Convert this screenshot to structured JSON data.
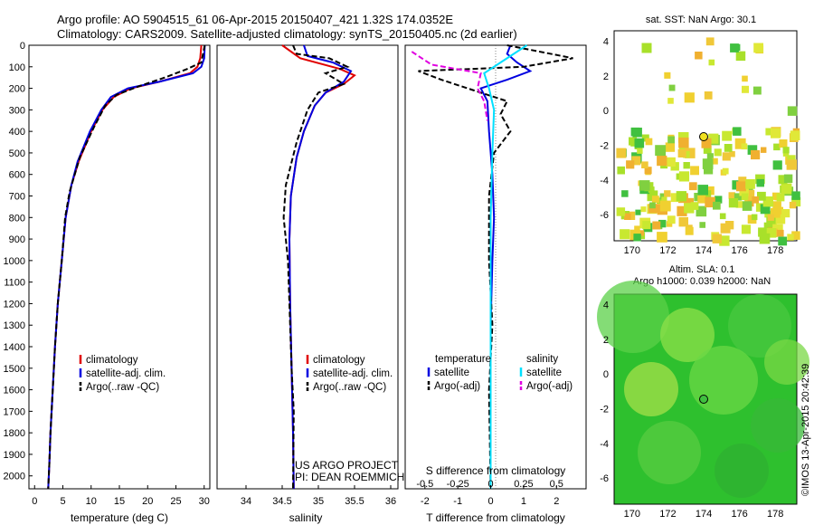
{
  "header": {
    "line1": "Argo profile: AO 5904515_61 06-Apr-2015 20150407_421 1.32S 174.0352E",
    "line2": "Climatology: CARS2009. Satellite-adjusted climatology: synTS_20150405.nc (2d earlier)"
  },
  "colors": {
    "climatology": "#e00000",
    "satellite": "#0000e0",
    "argo": "#000000",
    "salinity_satellite": "#00e0ff",
    "salinity_argo": "#e000e0"
  },
  "chart_data": [
    {
      "type": "line",
      "id": "temperature",
      "xlabel": "temperature (deg C)",
      "ylabel": "",
      "xlim": [
        -1,
        31
      ],
      "ylim": [
        2060,
        0
      ],
      "xticks": [
        "0",
        "5",
        "10",
        "15",
        "20",
        "25",
        "30"
      ],
      "yticks": [
        "0",
        "100",
        "200",
        "300",
        "400",
        "500",
        "600",
        "700",
        "800",
        "900",
        "1000",
        "1100",
        "1200",
        "1300",
        "1400",
        "1500",
        "1600",
        "1700",
        "1800",
        "1900",
        "2000"
      ],
      "legend": [
        "climatology",
        "satellite-adj. clim.",
        "Argo(..raw -QC)"
      ],
      "series": [
        {
          "name": "climatology",
          "color": "#e00000",
          "dash": "",
          "points": [
            [
              29.5,
              0
            ],
            [
              29.3,
              60
            ],
            [
              28.8,
              100
            ],
            [
              27.5,
              130
            ],
            [
              22,
              170
            ],
            [
              17,
              200
            ],
            [
              14,
              240
            ],
            [
              12,
              300
            ],
            [
              10,
              400
            ],
            [
              7.8,
              540
            ],
            [
              6.5,
              650
            ],
            [
              5.5,
              800
            ],
            [
              4.8,
              1000
            ],
            [
              4.1,
              1200
            ],
            [
              3.6,
              1400
            ],
            [
              3.2,
              1600
            ],
            [
              2.8,
              1800
            ],
            [
              2.6,
              1950
            ],
            [
              2.4,
              2060
            ]
          ]
        },
        {
          "name": "satellite-adj. clim.",
          "color": "#0000e0",
          "dash": "",
          "points": [
            [
              30.1,
              0
            ],
            [
              30,
              60
            ],
            [
              29.5,
              100
            ],
            [
              28,
              130
            ],
            [
              22,
              170
            ],
            [
              16.5,
              200
            ],
            [
              13.5,
              240
            ],
            [
              11.8,
              300
            ],
            [
              9.8,
              400
            ],
            [
              7.6,
              540
            ],
            [
              6.5,
              650
            ],
            [
              5.5,
              800
            ],
            [
              4.8,
              1000
            ],
            [
              4.1,
              1200
            ],
            [
              3.6,
              1400
            ],
            [
              3.2,
              1600
            ],
            [
              2.8,
              1800
            ],
            [
              2.6,
              1950
            ],
            [
              2.4,
              2060
            ]
          ]
        },
        {
          "name": "Argo(..raw -QC)",
          "color": "#000000",
          "dash": "6,3",
          "points": [
            [
              30.1,
              0
            ],
            [
              29.8,
              40
            ],
            [
              29.5,
              80
            ],
            [
              27,
              110
            ],
            [
              23,
              150
            ],
            [
              18.5,
              190
            ],
            [
              14.5,
              230
            ],
            [
              12.5,
              280
            ],
            [
              10.5,
              380
            ],
            [
              8,
              520
            ],
            [
              6.2,
              680
            ],
            [
              5.4,
              800
            ],
            [
              4.8,
              1000
            ],
            [
              4.1,
              1200
            ],
            [
              3.6,
              1400
            ],
            [
              3.2,
              1600
            ],
            [
              2.8,
              1800
            ],
            [
              2.6,
              1950
            ],
            [
              2.4,
              2060
            ]
          ]
        }
      ]
    },
    {
      "type": "line",
      "id": "salinity",
      "xlabel": "salinity",
      "xlim": [
        33.6,
        36.1
      ],
      "ylim": [
        2060,
        0
      ],
      "xticks": [
        "34",
        "34.5",
        "35",
        "35.5",
        "36"
      ],
      "legend": [
        "climatology",
        "satellite-adj. clim.",
        "Argo(..raw -QC)"
      ],
      "annotations": [
        "US ARGO PROJECT",
        "PI: DEAN ROEMMICH"
      ],
      "series": [
        {
          "name": "climatology",
          "color": "#e00000",
          "dash": "",
          "points": [
            [
              34.5,
              0
            ],
            [
              34.75,
              60
            ],
            [
              35.3,
              110
            ],
            [
              35.5,
              140
            ],
            [
              35.35,
              180
            ],
            [
              35.1,
              220
            ],
            [
              34.95,
              280
            ],
            [
              34.8,
              400
            ],
            [
              34.7,
              520
            ],
            [
              34.62,
              700
            ],
            [
              34.6,
              900
            ],
            [
              34.61,
              1200
            ],
            [
              34.63,
              1500
            ],
            [
              34.65,
              1800
            ],
            [
              34.66,
              2060
            ]
          ]
        },
        {
          "name": "satellite-adj. clim.",
          "color": "#0000e0",
          "dash": "",
          "points": [
            [
              34.8,
              0
            ],
            [
              34.85,
              50
            ],
            [
              35.2,
              80
            ],
            [
              35.45,
              120
            ],
            [
              35.35,
              170
            ],
            [
              35.1,
              220
            ],
            [
              34.95,
              280
            ],
            [
              34.8,
              400
            ],
            [
              34.7,
              520
            ],
            [
              34.62,
              700
            ],
            [
              34.6,
              900
            ],
            [
              34.61,
              1200
            ],
            [
              34.63,
              1500
            ],
            [
              34.65,
              1800
            ],
            [
              34.66,
              2060
            ]
          ]
        },
        {
          "name": "Argo(..raw -QC)",
          "color": "#000000",
          "dash": "6,3",
          "points": [
            [
              34.65,
              0
            ],
            [
              34.7,
              40
            ],
            [
              35.15,
              60
            ],
            [
              35.4,
              100
            ],
            [
              35.1,
              130
            ],
            [
              35.35,
              180
            ],
            [
              35.0,
              220
            ],
            [
              34.85,
              300
            ],
            [
              34.7,
              450
            ],
            [
              34.55,
              650
            ],
            [
              34.52,
              800
            ],
            [
              34.58,
              1000
            ],
            [
              34.6,
              1200
            ],
            [
              34.63,
              1500
            ],
            [
              34.66,
              1700
            ],
            [
              34.65,
              2060
            ]
          ]
        }
      ]
    },
    {
      "type": "line",
      "id": "difference",
      "xlabel": "T difference from climatology",
      "xlabel_top": "S difference from climatology",
      "xlim": [
        -2.6,
        2.9
      ],
      "ylim": [
        2060,
        0
      ],
      "xticks": [
        "-2",
        "-1",
        "0",
        "1",
        "2"
      ],
      "xticks_top": [
        "-0.5",
        "-0.25",
        "0",
        "0.25",
        "0.5"
      ],
      "legend_left_title": "temperature",
      "legend_right_title": "salinity",
      "legend_left": [
        "satellite",
        "Argo(-adj)"
      ],
      "legend_right": [
        "satellite",
        "Argo(-adj)"
      ],
      "series": [
        {
          "name": "temperature satellite",
          "color": "#0000e0",
          "dash": "",
          "points": [
            [
              0.6,
              0
            ],
            [
              0.5,
              40
            ],
            [
              0.8,
              80
            ],
            [
              1.2,
              120
            ],
            [
              0.5,
              160
            ],
            [
              -0.3,
              200
            ],
            [
              -0.1,
              260
            ],
            [
              -0.05,
              400
            ],
            [
              0.05,
              600
            ],
            [
              0.1,
              800
            ],
            [
              0.05,
              1000
            ],
            [
              0.0,
              1300
            ],
            [
              0.0,
              1600
            ],
            [
              0.0,
              2060
            ]
          ]
        },
        {
          "name": "temperature Argo(-adj)",
          "color": "#000000",
          "dash": "6,3",
          "points": [
            [
              0.5,
              0
            ],
            [
              2.5,
              60
            ],
            [
              1.0,
              100
            ],
            [
              -2.2,
              120
            ],
            [
              -1.5,
              160
            ],
            [
              -0.5,
              210
            ],
            [
              0.5,
              260
            ],
            [
              0.3,
              320
            ],
            [
              0.6,
              400
            ],
            [
              0.1,
              500
            ],
            [
              -0.05,
              700
            ],
            [
              -0.05,
              1000
            ],
            [
              0.05,
              1300
            ],
            [
              -0.05,
              1600
            ],
            [
              0.0,
              2060
            ]
          ]
        },
        {
          "name": "salinity satellite",
          "color": "#00e0ff",
          "dash": "",
          "points": [
            [
              1.1,
              0
            ],
            [
              0.7,
              40
            ],
            [
              0.3,
              80
            ],
            [
              -0.2,
              130
            ],
            [
              -0.05,
              200
            ],
            [
              0.1,
              300
            ],
            [
              0.05,
              500
            ],
            [
              0.0,
              800
            ],
            [
              0.0,
              1100
            ],
            [
              0.0,
              1500
            ],
            [
              0.0,
              2060
            ]
          ]
        },
        {
          "name": "salinity Argo(-adj)",
          "color": "#e000e0",
          "dash": "6,3",
          "points": [
            [
              -2.4,
              30
            ],
            [
              -1.8,
              90
            ],
            [
              -0.3,
              130
            ],
            [
              -0.4,
              200
            ],
            [
              -0.2,
              260
            ],
            [
              -0.1,
              350
            ]
          ]
        }
      ]
    },
    {
      "type": "heatmap",
      "id": "sst-map",
      "title": "sat. SST: NaN Argo: 30.1",
      "xticks": [
        "170",
        "172",
        "174",
        "176",
        "178"
      ],
      "yticks": [
        "4",
        "2",
        "0",
        "-2",
        "-4",
        "-6"
      ],
      "xlim": [
        169,
        179.2
      ],
      "ylim": [
        -7.5,
        4.6
      ],
      "argo_position": [
        174.04,
        -1.32
      ]
    },
    {
      "type": "heatmap",
      "id": "sla-map",
      "title_line1": "Altim. SLA: 0.1",
      "title_line2": "Argo h1000: 0.039 h2000: NaN",
      "xticks": [
        "170",
        "172",
        "174",
        "176",
        "178"
      ],
      "yticks": [
        "4",
        "2",
        "0",
        "-2",
        "-4",
        "-6"
      ],
      "xlim": [
        169,
        179.2
      ],
      "ylim": [
        -7.5,
        4.6
      ],
      "argo_position": [
        174.04,
        -1.32
      ]
    }
  ],
  "footer_vertical": "©IMOS 13-Apr-2015 20:42:39"
}
